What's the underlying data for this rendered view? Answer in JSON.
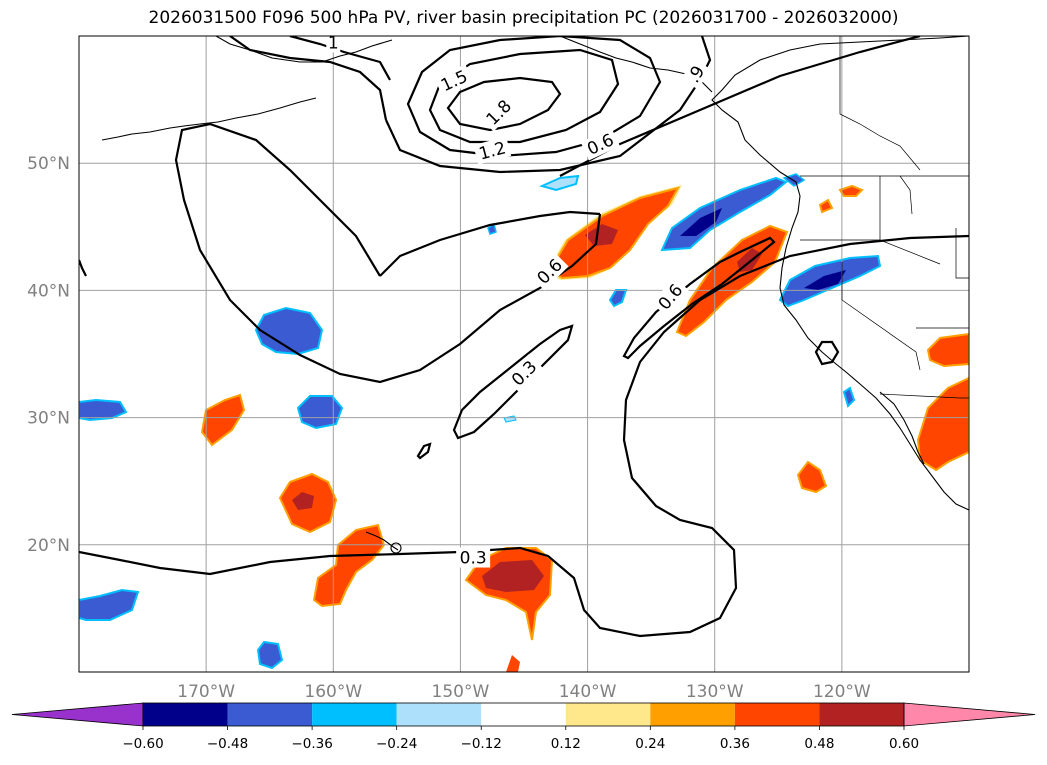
{
  "chart_data": {
    "type": "map",
    "title": "2026031500 F096 500 hPa PV, river basin precipitation PC (2026031700 - 2026032000)",
    "projection": "plate carree",
    "extent": {
      "lon": [
        -180,
        -110
      ],
      "lat": [
        10,
        60
      ]
    },
    "gridlines": true,
    "lon_ticks": [
      {
        "lon": -170,
        "label": "170°W"
      },
      {
        "lon": -160,
        "label": "160°W"
      },
      {
        "lon": -150,
        "label": "150°W"
      },
      {
        "lon": -140,
        "label": "140°W"
      },
      {
        "lon": -130,
        "label": "130°W"
      },
      {
        "lon": -120,
        "label": "120°W"
      }
    ],
    "lat_ticks": [
      {
        "lat": 20,
        "label": "20°N"
      },
      {
        "lat": 30,
        "label": "30°N"
      },
      {
        "lat": 40,
        "label": "40°N"
      },
      {
        "lat": 50,
        "label": "50°N"
      }
    ],
    "colorbar": {
      "orientation": "horizontal",
      "extend": "both",
      "boundaries": [
        -0.6,
        -0.48,
        -0.36,
        -0.24,
        -0.12,
        0.12,
        0.24,
        0.36,
        0.48,
        0.6
      ],
      "colors": [
        "#9932CC",
        "#00008B",
        "#3A5BD2",
        "#00BFFF",
        "#ADE0FA",
        "#FFFFFF",
        "#FFE88C",
        "#FFA000",
        "#FF4500",
        "#B22222",
        "#FF88AA"
      ],
      "tick_labels": [
        "−0.60",
        "−0.48",
        "−0.36",
        "−0.24",
        "−0.12",
        "0.12",
        "0.24",
        "0.36",
        "0.48",
        "0.60"
      ]
    },
    "pv_contours": {
      "levels": [
        0.3,
        0.6,
        0.9,
        1.2,
        1.5,
        1.8
      ],
      "labels": [
        {
          "text": "1.5",
          "lon": -150.5,
          "lat": 56.5,
          "angle": -25
        },
        {
          "text": "1.8",
          "lon": -147.0,
          "lat": 54.0,
          "angle": -45
        },
        {
          "text": "1.2",
          "lon": -147.5,
          "lat": 51.0,
          "angle": -15
        },
        {
          "text": "0.6",
          "lon": -139.0,
          "lat": 51.5,
          "angle": -25
        },
        {
          "text": ".9",
          "lon": -131.5,
          "lat": 57.0,
          "angle": -60
        },
        {
          "text": "1",
          "lon": -160.0,
          "lat": 59.5,
          "angle": 0
        },
        {
          "text": "0.6",
          "lon": -143.0,
          "lat": 41.5,
          "angle": -45
        },
        {
          "text": "0.6",
          "lon": -133.5,
          "lat": 39.5,
          "angle": -50
        },
        {
          "text": "0.3",
          "lon": -145.0,
          "lat": 33.5,
          "angle": -45
        },
        {
          "text": "0.3",
          "lon": -149.0,
          "lat": 19.0,
          "angle": 0
        }
      ]
    }
  }
}
